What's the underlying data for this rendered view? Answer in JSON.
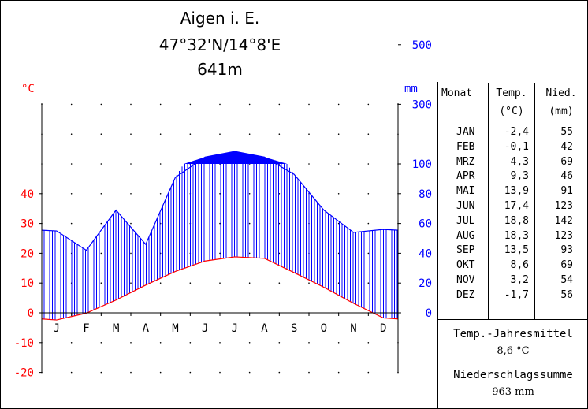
{
  "header": {
    "station": "Aigen i. E.",
    "coordinates": "47°32'N/14°8'E",
    "elevation": "641m"
  },
  "chart_data": {
    "type": "climate-diagram",
    "months": [
      "J",
      "F",
      "M",
      "A",
      "M",
      "J",
      "J",
      "A",
      "S",
      "O",
      "N",
      "D"
    ],
    "temp_unit": "°C",
    "precip_unit": "mm",
    "temp_ticks": [
      "-20",
      "-10",
      "0",
      "10",
      "20",
      "30",
      "40"
    ],
    "precip_ticks": [
      "0",
      "20",
      "40",
      "60",
      "80",
      "100",
      "300",
      "500"
    ],
    "temperature": [
      -2.4,
      -0.1,
      4.3,
      9.3,
      13.9,
      17.4,
      18.8,
      18.3,
      13.5,
      8.6,
      3.2,
      -1.7
    ],
    "precipitation": [
      55,
      42,
      69,
      46,
      91,
      123,
      142,
      123,
      93,
      69,
      54,
      56
    ],
    "temp_ylim": [
      -20,
      50
    ],
    "precip_scale": "0–100 mm linear (2 mm per °C), above 100 mm compressed (100 mm per 10 °C)",
    "colors": {
      "temperature": "#ff0000",
      "precipitation": "#0000ff",
      "temp_axis": "#ff0000",
      "precip_axis": "#0000ff"
    }
  },
  "table": {
    "headers": {
      "month": "Monat",
      "temp": "Temp.",
      "temp_unit": "(°C)",
      "precip": "Nied.",
      "precip_unit": "(mm)"
    },
    "rows": [
      {
        "month": "JAN",
        "temp": "-2,4",
        "precip": "55"
      },
      {
        "month": "FEB",
        "temp": "-0,1",
        "precip": "42"
      },
      {
        "month": "MRZ",
        "temp": "4,3",
        "precip": "69"
      },
      {
        "month": "APR",
        "temp": "9,3",
        "precip": "46"
      },
      {
        "month": "MAI",
        "temp": "13,9",
        "precip": "91"
      },
      {
        "month": "JUN",
        "temp": "17,4",
        "precip": "123"
      },
      {
        "month": "JUL",
        "temp": "18,8",
        "precip": "142"
      },
      {
        "month": "AUG",
        "temp": "18,3",
        "precip": "123"
      },
      {
        "month": "SEP",
        "temp": "13,5",
        "precip": "93"
      },
      {
        "month": "OKT",
        "temp": "8,6",
        "precip": "69"
      },
      {
        "month": "NOV",
        "temp": "3,2",
        "precip": "54"
      },
      {
        "month": "DEZ",
        "temp": "-1,7",
        "precip": "56"
      }
    ],
    "annual_temp_label": "Temp.-Jahresmittel",
    "annual_temp_value": "8,6 °C",
    "annual_precip_label": "Niederschlagssumme",
    "annual_precip_value": "963 mm"
  }
}
